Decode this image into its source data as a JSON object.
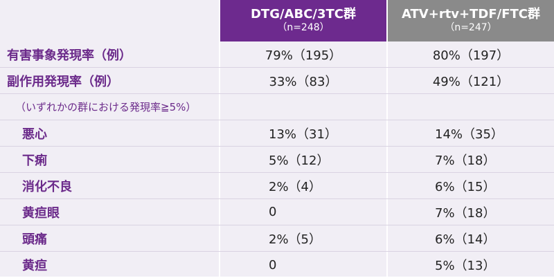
{
  "header": {
    "group1_name": "DTG/ABC/3TC群",
    "group1_n": "（n=248）",
    "group2_name": "ATV+rtv+TDF/FTC群",
    "group2_n": "（n=247）"
  },
  "rows": [
    {
      "label": "有害事象発現率（例）",
      "v1": "79%（195）",
      "v2": "80%（197）"
    },
    {
      "label": "副作用発現率（例）",
      "v1": "33%（83）",
      "v2": "49%（121）"
    },
    {
      "label": "（いずれかの群における発現率≧5%）",
      "v1": "",
      "v2": ""
    },
    {
      "label": "悪心",
      "v1": "13%（31）",
      "v2": "14%（35）"
    },
    {
      "label": "下痢",
      "v1": "5%（12）",
      "v2": "7%（18）"
    },
    {
      "label": "消化不良",
      "v1": "2%（4）",
      "v2": "6%（15）"
    },
    {
      "label": "黄疸眼",
      "v1": "0",
      "v2": "7%（18）"
    },
    {
      "label": "頭痛",
      "v1": "2%（5）",
      "v2": "6%（14）"
    },
    {
      "label": "黄疸",
      "v1": "0",
      "v2": "5%（13）"
    }
  ],
  "colors": {
    "group1_header": "#6d2a8e",
    "group2_header": "#8a8a8a",
    "label_text": "#6b2a8a",
    "background": "#f1eef5"
  }
}
